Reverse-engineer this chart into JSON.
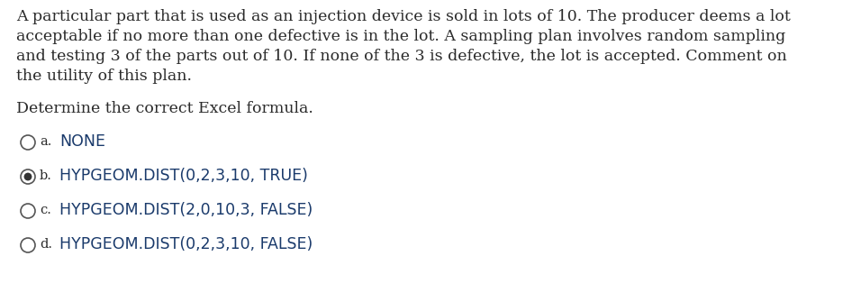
{
  "background_color": "#ffffff",
  "paragraph_text": "A particular part that is used as an injection device is sold in lots of 10. The producer deems a lot\nacceptable if no more than one defective is in the lot. A sampling plan involves random sampling\nand testing 3 of the parts out of 10. If none of the 3 is defective, the lot is accepted. Comment on\nthe utility of this plan.",
  "subheading": "Determine the correct Excel formula.",
  "options": [
    {
      "label": "a.",
      "text": "NONE",
      "selected": false
    },
    {
      "label": "b.",
      "text": "HYPGEOM.DIST(0,2,3,10, TRUE)",
      "selected": true
    },
    {
      "label": "c.",
      "text": "HYPGEOM.DIST(2,0,10,3, FALSE)",
      "selected": false
    },
    {
      "label": "d.",
      "text": "HYPGEOM.DIST(0,2,3,10, FALSE)",
      "selected": false
    }
  ],
  "text_color": "#2b2b2b",
  "option_label_color": "#2b2b2b",
  "option_text_color": "#1a3a6b",
  "font_size_body": 12.5,
  "font_size_options": 12.5,
  "font_size_label": 10.5,
  "font_size_subheading": 12.5,
  "circle_color": "#555555",
  "dot_color": "#333333"
}
